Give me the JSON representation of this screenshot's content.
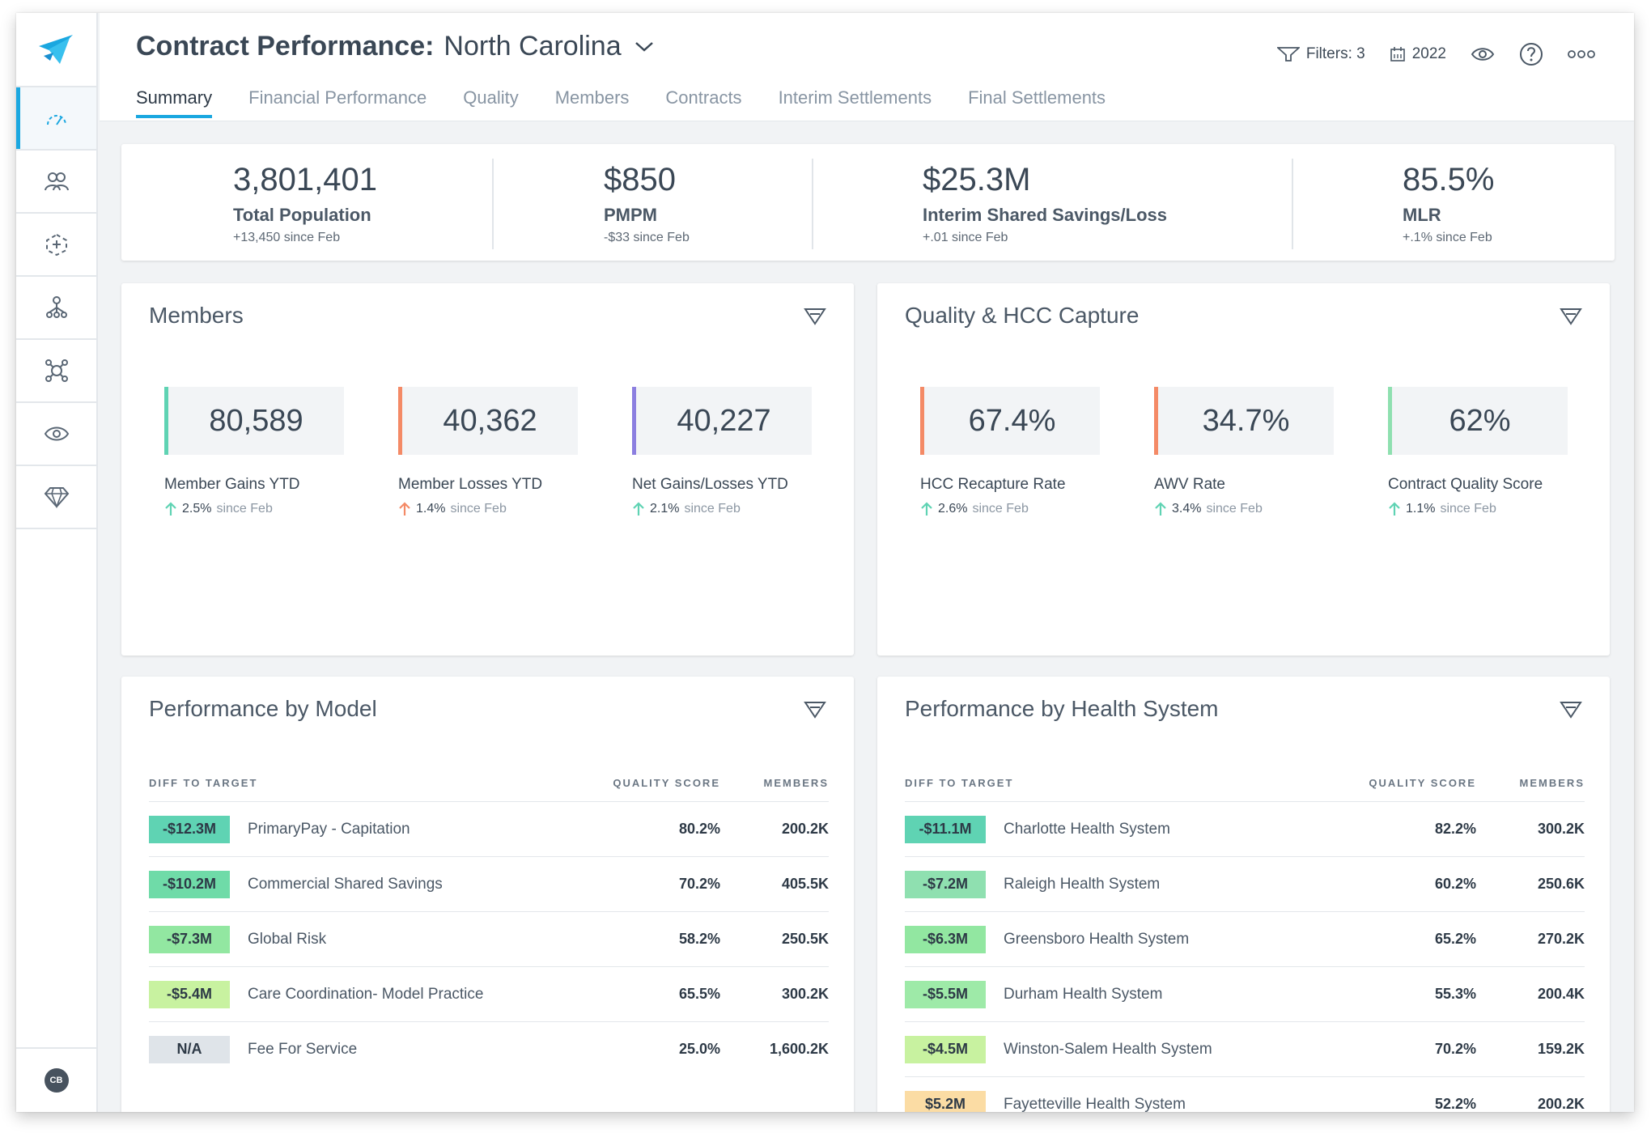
{
  "header": {
    "title": "Contract Performance:",
    "subtitle": "North Carolina",
    "filters_label": "Filters: 3",
    "year_label": "2022"
  },
  "tabs": [
    {
      "label": "Summary",
      "active": true
    },
    {
      "label": "Financial Performance"
    },
    {
      "label": "Quality"
    },
    {
      "label": "Members"
    },
    {
      "label": "Contracts"
    },
    {
      "label": "Interim Settlements"
    },
    {
      "label": "Final Settlements"
    }
  ],
  "sidebar": {
    "items": [
      "dashboard-icon",
      "members-icon",
      "care-icon",
      "network-icon",
      "operations-icon",
      "view-icon",
      "diamond-icon"
    ],
    "user_initials": "CB"
  },
  "kpis": [
    {
      "value": "3,801,401",
      "label": "Total Population",
      "change": "+13,450 since Feb"
    },
    {
      "value": "$850",
      "label": "PMPM",
      "change": "-$33 since Feb"
    },
    {
      "value": "$25.3M",
      "label": "Interim Shared Savings/Loss",
      "change": "+.01 since Feb"
    },
    {
      "value": "85.5%",
      "label": "MLR",
      "change": "+.1% since Feb"
    }
  ],
  "members_card": {
    "title": "Members",
    "stats": [
      {
        "value": "80,589",
        "label": "Member Gains YTD",
        "pct": "2.5%",
        "since": "since Feb",
        "color": "#5fd3b3",
        "arrow": "#5fd3b3"
      },
      {
        "value": "40,362",
        "label": "Member Losses YTD",
        "pct": "1.4%",
        "since": "since Feb",
        "color": "#f48a66",
        "arrow": "#f48a66"
      },
      {
        "value": "40,227",
        "label": "Net Gains/Losses YTD",
        "pct": "2.1%",
        "since": "since Feb",
        "color": "#8c7fe0",
        "arrow": "#5fd3b3"
      }
    ]
  },
  "quality_card": {
    "title": "Quality & HCC Capture",
    "stats": [
      {
        "value": "67.4%",
        "label": "HCC Recapture Rate",
        "pct": "2.6%",
        "since": "since Feb",
        "color": "#f48a66",
        "arrow": "#5fd3b3"
      },
      {
        "value": "34.7%",
        "label": "AWV Rate",
        "pct": "3.4%",
        "since": "since Feb",
        "color": "#f48a66",
        "arrow": "#5fd3b3"
      },
      {
        "value": "62%",
        "label": "Contract Quality Score",
        "pct": "1.1%",
        "since": "since Feb",
        "color": "#8fe0b0",
        "arrow": "#5fd3b3"
      }
    ]
  },
  "model_card": {
    "title": "Performance by Model",
    "col_diff": "DIFF TO TARGET",
    "col_quality": "QUALITY SCORE",
    "col_members": "MEMBERS",
    "rows": [
      {
        "diff": "-$12.3M",
        "name": "PrimaryPay - Capitation",
        "quality": "80.2%",
        "members": "200.2K",
        "color": "#5fd3b3"
      },
      {
        "diff": "-$10.2M",
        "name": "Commercial Shared Savings",
        "quality": "70.2%",
        "members": "405.5K",
        "color": "#6fdba8"
      },
      {
        "diff": "-$7.3M",
        "name": "Global Risk",
        "quality": "58.2%",
        "members": "250.5K",
        "color": "#92e7a1"
      },
      {
        "diff": "-$5.4M",
        "name": "Care Coordination- Model Practice",
        "quality": "65.5%",
        "members": "300.2K",
        "color": "#c8f2a0"
      },
      {
        "diff": "N/A",
        "name": "Fee For Service",
        "quality": "25.0%",
        "members": "1,600.2K",
        "color": "#dfe4e9"
      }
    ]
  },
  "health_card": {
    "title": "Performance by Health System",
    "col_diff": "DIFF TO TARGET",
    "col_quality": "QUALITY SCORE",
    "col_members": "MEMBERS",
    "rows": [
      {
        "diff": "-$11.1M",
        "name": "Charlotte Health System",
        "quality": "82.2%",
        "members": "300.2K",
        "color": "#5fd3b3"
      },
      {
        "diff": "-$7.2M",
        "name": "Raleigh Health System",
        "quality": "60.2%",
        "members": "250.6K",
        "color": "#8fe0b0"
      },
      {
        "diff": "-$6.3M",
        "name": "Greensboro Health System",
        "quality": "65.2%",
        "members": "270.2K",
        "color": "#92e7a1"
      },
      {
        "diff": "-$5.5M",
        "name": "Durham Health System",
        "quality": "55.3%",
        "members": "200.4K",
        "color": "#9eeaa8"
      },
      {
        "diff": "-$4.5M",
        "name": "Winston-Salem Health System",
        "quality": "70.2%",
        "members": "159.2K",
        "color": "#c8f2a0"
      },
      {
        "diff": "$5.2M",
        "name": "Fayetteville Health System",
        "quality": "52.2%",
        "members": "200.2K",
        "color": "#fbdca4"
      }
    ]
  }
}
